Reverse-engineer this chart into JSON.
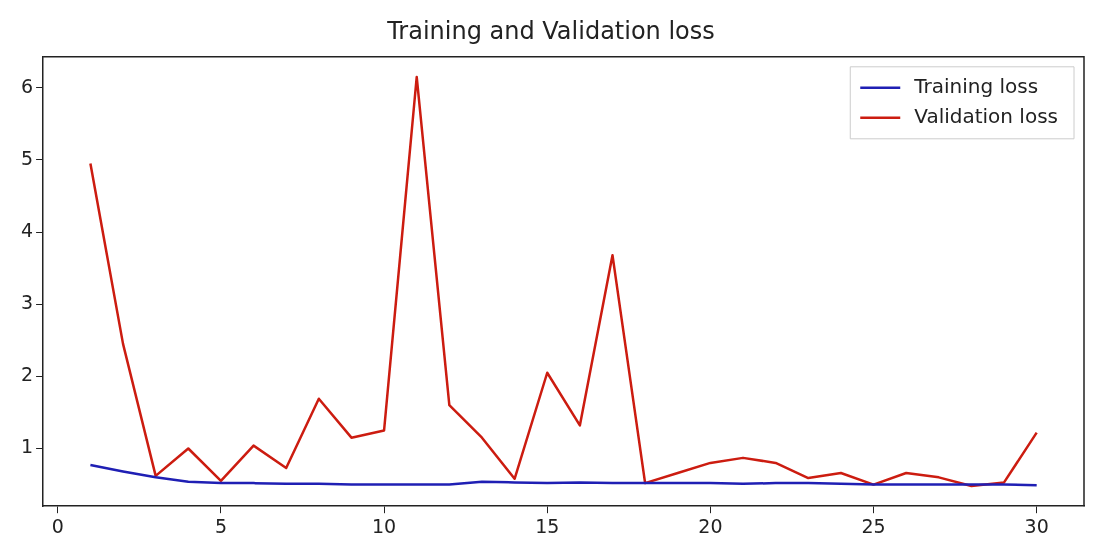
{
  "chart_data": {
    "type": "line",
    "title": "Training and Validation loss",
    "x": [
      1,
      2,
      3,
      4,
      5,
      6,
      7,
      8,
      9,
      10,
      11,
      12,
      13,
      14,
      15,
      16,
      17,
      18,
      19,
      20,
      21,
      22,
      23,
      24,
      25,
      26,
      27,
      28,
      29,
      30
    ],
    "series": [
      {
        "name": "Training loss",
        "color": "#1f1fb4",
        "values": [
          0.77,
          0.68,
          0.6,
          0.54,
          0.52,
          0.52,
          0.51,
          0.51,
          0.5,
          0.5,
          0.5,
          0.5,
          0.54,
          0.53,
          0.52,
          0.53,
          0.52,
          0.52,
          0.52,
          0.52,
          0.51,
          0.52,
          0.52,
          0.51,
          0.5,
          0.5,
          0.5,
          0.5,
          0.5,
          0.49
        ]
      },
      {
        "name": "Validation loss",
        "color": "#cc1c10",
        "values": [
          4.95,
          2.45,
          0.62,
          1.0,
          0.55,
          1.04,
          0.73,
          1.69,
          1.15,
          1.25,
          6.15,
          1.6,
          1.15,
          0.58,
          2.05,
          1.32,
          3.68,
          0.52,
          0.66,
          0.8,
          0.87,
          0.8,
          0.59,
          0.66,
          0.5,
          0.66,
          0.6,
          0.48,
          0.53,
          1.22
        ]
      }
    ],
    "xlim": [
      -0.45,
      31.45
    ],
    "xticks": [
      0,
      5,
      10,
      15,
      20,
      25,
      30
    ],
    "ylim": [
      0.2,
      6.43
    ],
    "yticks": [
      1,
      2,
      3,
      4,
      5,
      6
    ],
    "grid": false,
    "legend": "top right",
    "marker": "none",
    "line_style": "solid"
  }
}
